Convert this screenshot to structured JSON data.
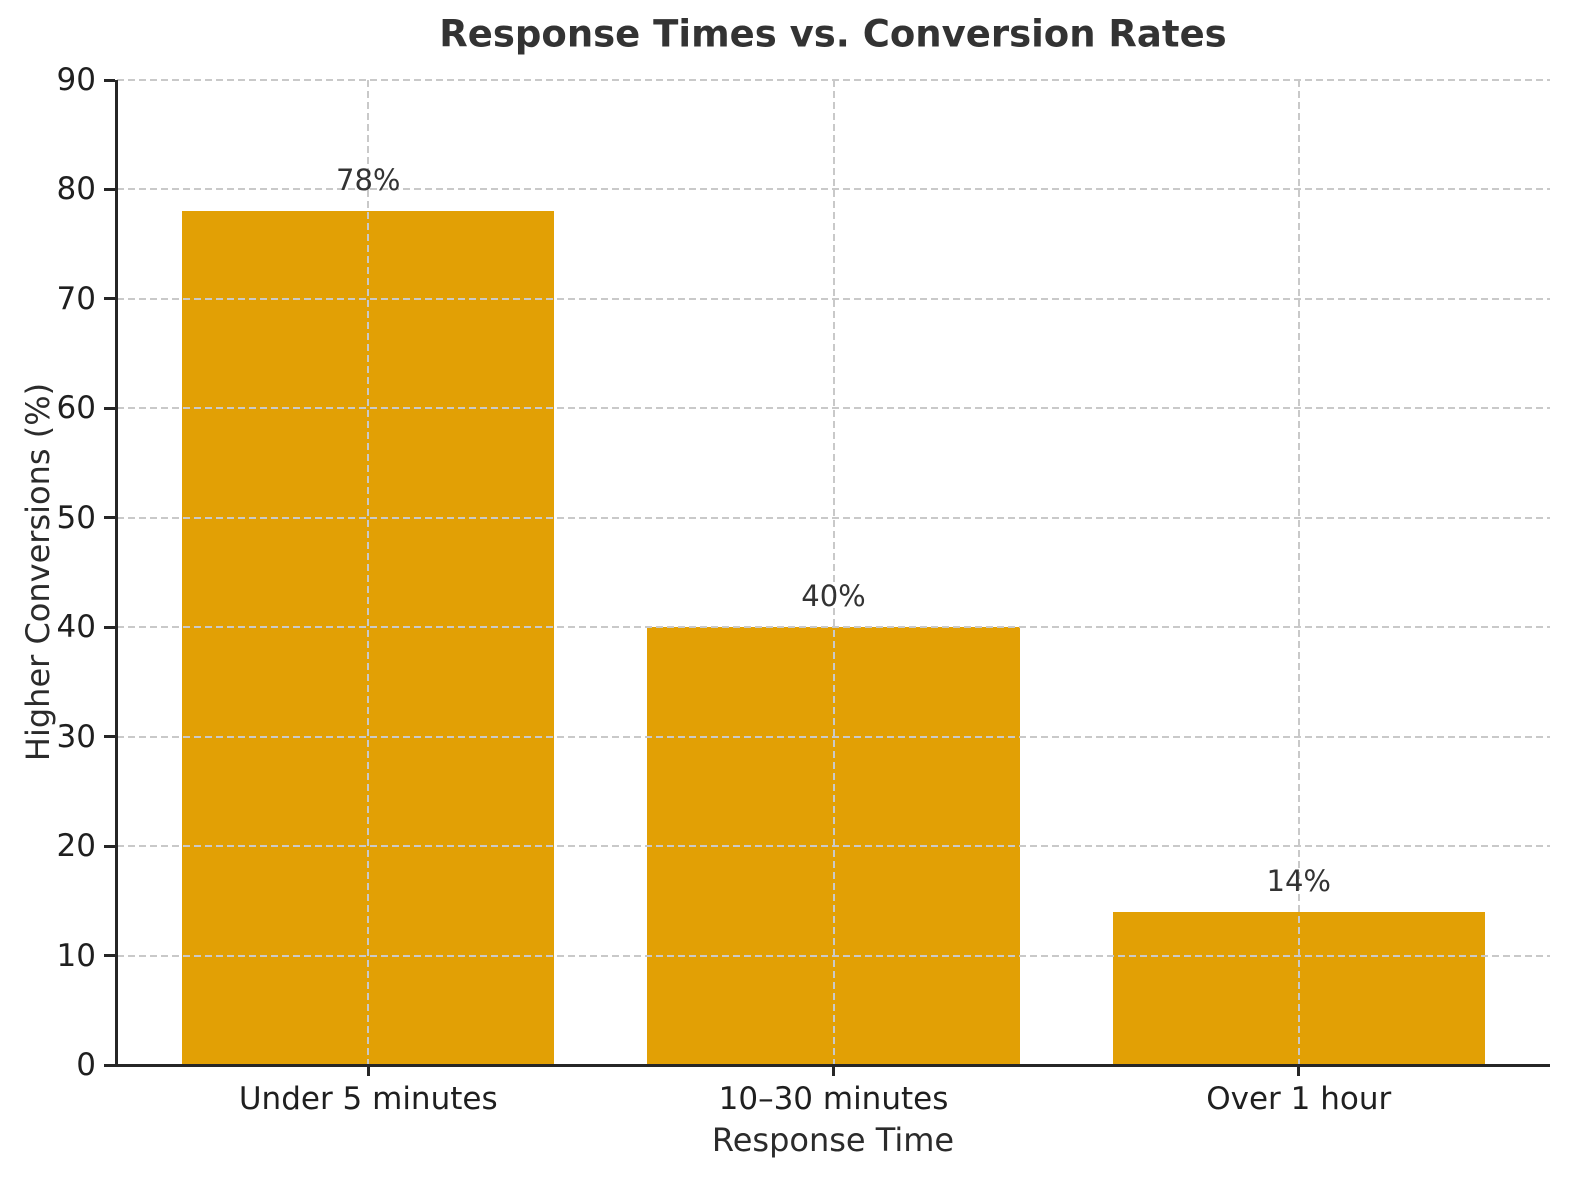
{
  "chart_data": {
    "type": "bar",
    "title": "Response Times vs. Conversion Rates",
    "xlabel": "Response Time",
    "ylabel": "Higher Conversions (%)",
    "categories": [
      "Under 5 minutes",
      "10–30 minutes",
      "Over 1 hour"
    ],
    "values": [
      78,
      40,
      14
    ],
    "bar_labels": [
      "78%",
      "40%",
      "14%"
    ],
    "ylim": [
      0,
      90
    ],
    "yticks": [
      0,
      10,
      20,
      30,
      40,
      50,
      60,
      70,
      80,
      90
    ],
    "grid": "dashed, horizontal at every y tick and vertical at every bar center, drawn above bars",
    "legend": "none",
    "colors": {
      "bar": "#E2A005",
      "grid": "#c9c9c9",
      "axis": "#262626",
      "tick_text": "#1f1f1f",
      "title_text": "#333333"
    }
  }
}
